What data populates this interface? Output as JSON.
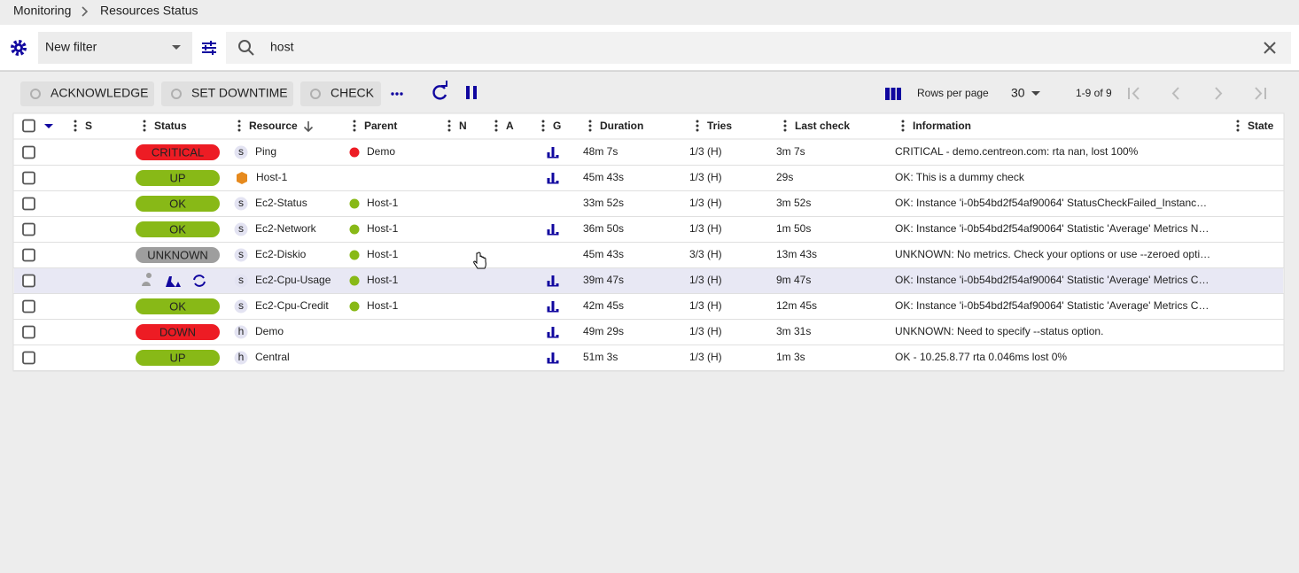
{
  "breadcrumb": [
    "Monitoring",
    "Resources Status"
  ],
  "filter": {
    "name": "New filter",
    "search": "host"
  },
  "actions": [
    "ACKNOWLEDGE",
    "SET DOWNTIME",
    "CHECK"
  ],
  "pagination": {
    "rows_per_page_label": "Rows per page",
    "rows_per_page": "30",
    "range": "1-9 of 9"
  },
  "table": {
    "columns": [
      "S",
      "Status",
      "Resource",
      "Parent",
      "N",
      "A",
      "G",
      "Duration",
      "Tries",
      "Last check",
      "Information",
      "State"
    ],
    "rows": [
      {
        "status": "CRITICAL",
        "status_color": "#ed1c24",
        "status_text_color": "#ffffff",
        "type": "s",
        "resource": "Ping",
        "parent": "Demo",
        "parent_color": "#ed1c24",
        "graph": true,
        "duration": "48m 7s",
        "tries": "1/3 (H)",
        "last_check": "3m 7s",
        "information": "CRITICAL - demo.centreon.com: rta nan, lost 100%"
      },
      {
        "status": "UP",
        "status_color": "#88b917",
        "status_text_color": "#222222",
        "type": null,
        "resource": "Host-1",
        "parent": null,
        "parent_color": null,
        "graph": true,
        "duration": "45m 43s",
        "tries": "1/3 (H)",
        "last_check": "29s",
        "information": "OK: This is a dummy check"
      },
      {
        "status": "OK",
        "status_color": "#88b917",
        "status_text_color": "#222222",
        "type": "s",
        "resource": "Ec2-Status",
        "parent": "Host-1",
        "parent_color": "#88b917",
        "graph": false,
        "duration": "33m 52s",
        "tries": "1/3 (H)",
        "last_check": "3m 52s",
        "information": "OK: Instance 'i-0b54bd2f54af90064' StatusCheckFailed_Instanc…"
      },
      {
        "status": "OK",
        "status_color": "#88b917",
        "status_text_color": "#222222",
        "type": "s",
        "resource": "Ec2-Network",
        "parent": "Host-1",
        "parent_color": "#88b917",
        "graph": true,
        "duration": "36m 50s",
        "tries": "1/3 (H)",
        "last_check": "1m 50s",
        "information": "OK: Instance 'i-0b54bd2f54af90064' Statistic 'Average' Metrics N…"
      },
      {
        "status": "UNKNOWN",
        "status_color": "#9e9e9e",
        "status_text_color": "#222222",
        "type": "s",
        "resource": "Ec2-Diskio",
        "parent": "Host-1",
        "parent_color": "#88b917",
        "graph": false,
        "duration": "45m 43s",
        "tries": "3/3 (H)",
        "last_check": "13m 43s",
        "information": "UNKNOWN: No metrics. Check your options or use --zeroed opti…"
      },
      {
        "status": null,
        "status_color": null,
        "status_text_color": null,
        "type": "s",
        "resource": "Ec2-Cpu-Usage",
        "parent": "Host-1",
        "parent_color": "#88b917",
        "graph": true,
        "duration": "39m 47s",
        "tries": "1/3 (H)",
        "last_check": "9m 47s",
        "information": "OK: Instance 'i-0b54bd2f54af90064' Statistic 'Average' Metrics C…"
      },
      {
        "status": "OK",
        "status_color": "#88b917",
        "status_text_color": "#222222",
        "type": "s",
        "resource": "Ec2-Cpu-Credit",
        "parent": "Host-1",
        "parent_color": "#88b917",
        "graph": true,
        "duration": "42m 45s",
        "tries": "1/3 (H)",
        "last_check": "12m 45s",
        "information": "OK: Instance 'i-0b54bd2f54af90064' Statistic 'Average' Metrics C…"
      },
      {
        "status": "DOWN",
        "status_color": "#ed1c24",
        "status_text_color": "#ffffff",
        "type": "h",
        "resource": "Demo",
        "parent": null,
        "parent_color": null,
        "graph": true,
        "duration": "49m 29s",
        "tries": "1/3 (H)",
        "last_check": "3m 31s",
        "information": "UNKNOWN: Need to specify --status option."
      },
      {
        "status": "UP",
        "status_color": "#88b917",
        "status_text_color": "#222222",
        "type": "h",
        "resource": "Central",
        "parent": null,
        "parent_color": null,
        "graph": true,
        "duration": "51m 3s",
        "tries": "1/3 (H)",
        "last_check": "1m 3s",
        "information": "OK - 10.25.8.77 rta 0.046ms lost 0%"
      }
    ]
  }
}
